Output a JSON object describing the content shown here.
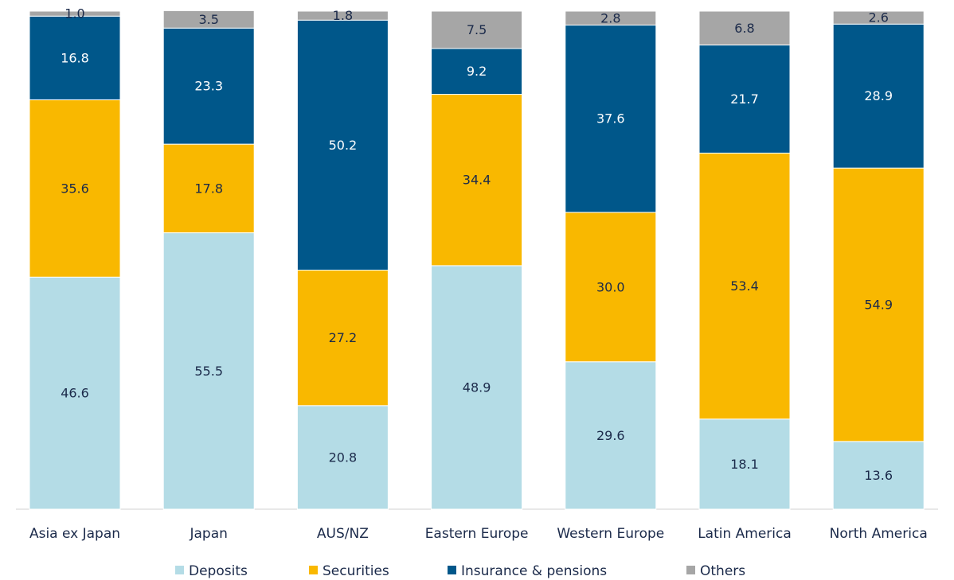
{
  "chart_data": {
    "type": "stacked_bar",
    "categories": [
      "Asia ex Japan",
      "Japan",
      "AUS/NZ",
      "Eastern Europe",
      "Western Europe",
      "Latin America",
      "North America"
    ],
    "series": [
      {
        "name": "Deposits",
        "color": "#b4dce6",
        "values": [
          46.6,
          55.5,
          20.8,
          48.9,
          29.6,
          18.1,
          13.6
        ],
        "value_labels": [
          "46.6",
          "55.5",
          "20.8",
          "48.9",
          "29.6",
          "18.1",
          "13.6"
        ]
      },
      {
        "name": "Securities",
        "color": "#f9b800",
        "values": [
          35.6,
          17.8,
          27.2,
          34.4,
          30.0,
          53.4,
          54.9
        ],
        "value_labels": [
          "35.6",
          "17.8",
          "27.2",
          "34.4",
          "30.0",
          "53.4",
          "54.9"
        ]
      },
      {
        "name": "Insurance & pensions",
        "color": "#00578a",
        "values": [
          16.8,
          23.3,
          50.2,
          9.2,
          37.6,
          21.7,
          28.9
        ],
        "value_labels": [
          "16.8",
          "23.3",
          "50.2",
          "9.2",
          "37.6",
          "21.7",
          "28.9"
        ]
      },
      {
        "name": "Others",
        "color": "#a6a6a6",
        "values": [
          1.0,
          3.5,
          1.8,
          7.5,
          2.8,
          6.8,
          2.6
        ],
        "value_labels": [
          "1.0",
          "3.5",
          "1.8",
          "7.5",
          "2.8",
          "6.8",
          "2.6"
        ]
      }
    ],
    "ylim": [
      0,
      100
    ]
  }
}
